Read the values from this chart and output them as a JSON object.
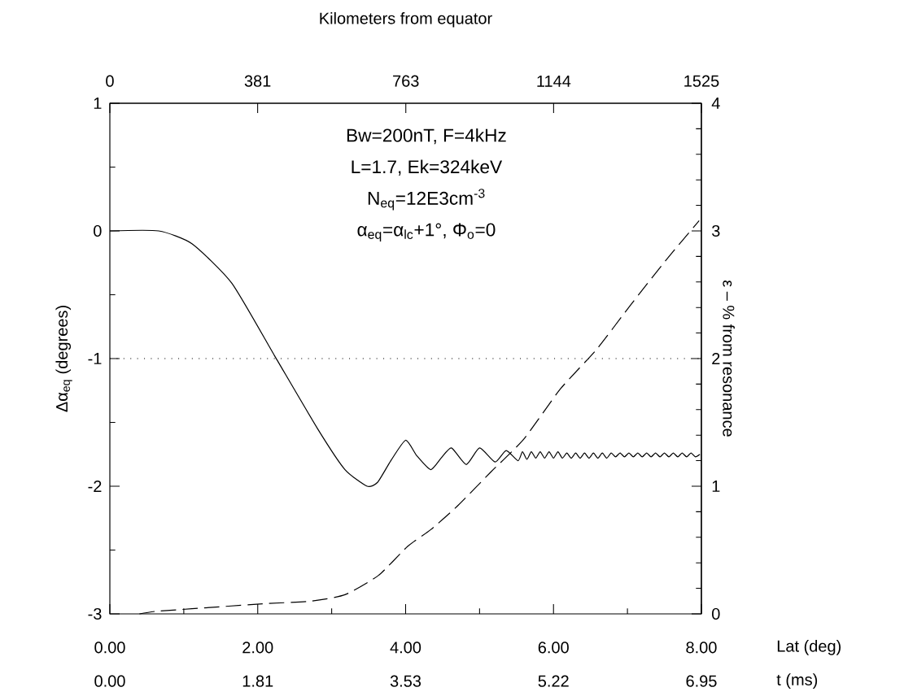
{
  "chart_data": {
    "type": "line",
    "xlabel": "Lat (deg)",
    "x2label": "Kilometers from equator",
    "ylabel": "Δα$_{eq}$ (degrees)",
    "y2label": "ε – % from resonance",
    "annotations": [
      "Bw=200nT, F=4kHz",
      "L=1.7, Ek=324keV",
      "N$_{eq}$=12E3cm$^{-3}$",
      "α$_{eq}$=α$_{lc}$+1°, Φ$_{o}$=0",
      "0.00",
      "1.81",
      "3.53",
      "5.22",
      "6.95",
      "t (ms)"
    ],
    "xlim": [
      0,
      8
    ],
    "xticks": [
      {
        "value": 0,
        "label": "0.00"
      },
      {
        "value": 2,
        "label": "2.00"
      },
      {
        "value": 4,
        "label": "4.00"
      },
      {
        "value": 6,
        "label": "6.00"
      },
      {
        "value": 8,
        "label": "8.00"
      }
    ],
    "x2lim": [
      0,
      1525
    ],
    "x2ticks": [
      0,
      381,
      763,
      1144,
      1525
    ],
    "ylim": [
      -3,
      1
    ],
    "yticks": [
      -3,
      -2,
      -1,
      0,
      1
    ],
    "y2lim": [
      0,
      4
    ],
    "y2ticks": [
      0,
      1,
      2,
      3,
      4
    ],
    "grid": false,
    "ref_lines": [
      {
        "axis": "y",
        "value": -1,
        "line_style": "dotted"
      }
    ],
    "series": [
      {
        "color": "#000000",
        "line_style": "solid",
        "axis": "y",
        "x": [
          0,
          0.66,
          1.11,
          1.65,
          2.23,
          2.81,
          3.18,
          3.48,
          3.62,
          3.8,
          4.0,
          4.15,
          4.34,
          4.48,
          4.62,
          4.82,
          5.0,
          5.21,
          5.36,
          5.52,
          5.58,
          5.64,
          5.7,
          5.76,
          5.82,
          5.88,
          5.94,
          6.0,
          6.06,
          6.12,
          6.18,
          6.24,
          6.3,
          6.36,
          6.42,
          6.48,
          6.54,
          6.6,
          6.66,
          6.72,
          6.78,
          6.84,
          6.9,
          6.96,
          7.02,
          7.08,
          7.14,
          7.2,
          7.26,
          7.32,
          7.38,
          7.44,
          7.5,
          7.56,
          7.62,
          7.68,
          7.74,
          7.8,
          7.86,
          7.92,
          7.98
        ],
        "values": [
          0,
          0,
          -0.1,
          -0.41,
          -0.98,
          -1.55,
          -1.87,
          -2.0,
          -1.97,
          -1.8,
          -1.64,
          -1.76,
          -1.87,
          -1.78,
          -1.7,
          -1.83,
          -1.7,
          -1.81,
          -1.72,
          -1.8,
          -1.73,
          -1.79,
          -1.73,
          -1.78,
          -1.73,
          -1.78,
          -1.73,
          -1.78,
          -1.73,
          -1.78,
          -1.74,
          -1.78,
          -1.74,
          -1.78,
          -1.74,
          -1.78,
          -1.74,
          -1.78,
          -1.74,
          -1.78,
          -1.74,
          -1.77,
          -1.74,
          -1.77,
          -1.74,
          -1.77,
          -1.74,
          -1.77,
          -1.74,
          -1.77,
          -1.74,
          -1.77,
          -1.74,
          -1.77,
          -1.74,
          -1.77,
          -1.74,
          -1.77,
          -1.74,
          -1.77,
          -1.75
        ]
      },
      {
        "color": "#000000",
        "line_style": "dashed",
        "axis": "y2",
        "x": [
          0.4,
          0.62,
          1.11,
          2.1,
          2.73,
          3.18,
          3.63,
          4.03,
          4.34,
          4.71,
          5.15,
          5.6,
          6.09,
          6.58,
          7.03,
          7.52,
          7.97
        ],
        "values": [
          0,
          0.02,
          0.04,
          0.08,
          0.1,
          0.15,
          0.3,
          0.53,
          0.66,
          0.85,
          1.11,
          1.37,
          1.76,
          2.07,
          2.41,
          2.77,
          3.08
        ]
      }
    ]
  }
}
